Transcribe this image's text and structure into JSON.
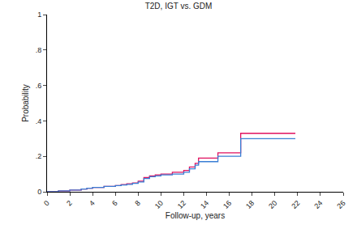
{
  "chart_data": {
    "type": "step",
    "title": "T2D, IGT vs. GDM",
    "x_label": "Follow-up, years",
    "y_label": "Probability",
    "x": [
      0,
      1,
      2,
      3,
      3.5,
      4,
      5,
      6,
      6.5,
      7,
      7.5,
      8,
      8.5,
      9,
      9.5,
      10,
      11,
      12,
      12.5,
      13,
      13.3,
      15,
      17,
      21.8
    ],
    "series": [
      {
        "color": "#e0115f",
        "values": [
          0,
          0.005,
          0.01,
          0.015,
          0.02,
          0.025,
          0.03,
          0.035,
          0.04,
          0.045,
          0.05,
          0.06,
          0.08,
          0.09,
          0.095,
          0.1,
          0.11,
          0.12,
          0.14,
          0.16,
          0.19,
          0.22,
          0.33,
          0.33
        ]
      },
      {
        "color": "#3a7fd5",
        "values": [
          0,
          0.005,
          0.01,
          0.015,
          0.02,
          0.025,
          0.03,
          0.035,
          0.038,
          0.042,
          0.047,
          0.055,
          0.075,
          0.085,
          0.09,
          0.095,
          0.1,
          0.11,
          0.13,
          0.15,
          0.17,
          0.2,
          0.3,
          0.3
        ]
      }
    ],
    "xlim": [
      0,
      26
    ],
    "xticks": [
      0,
      2,
      4,
      6,
      8,
      10,
      12,
      14,
      16,
      18,
      20,
      22,
      24,
      26
    ],
    "ylim": [
      0,
      1
    ],
    "yticks": [
      0,
      {
        "value": 0.2,
        "label": ".2"
      },
      {
        "value": 0.4,
        "label": ".4"
      },
      {
        "value": 0.6,
        "label": ".6"
      },
      {
        "value": 0.8,
        "label": ".8"
      },
      1
    ],
    "grid": false
  }
}
